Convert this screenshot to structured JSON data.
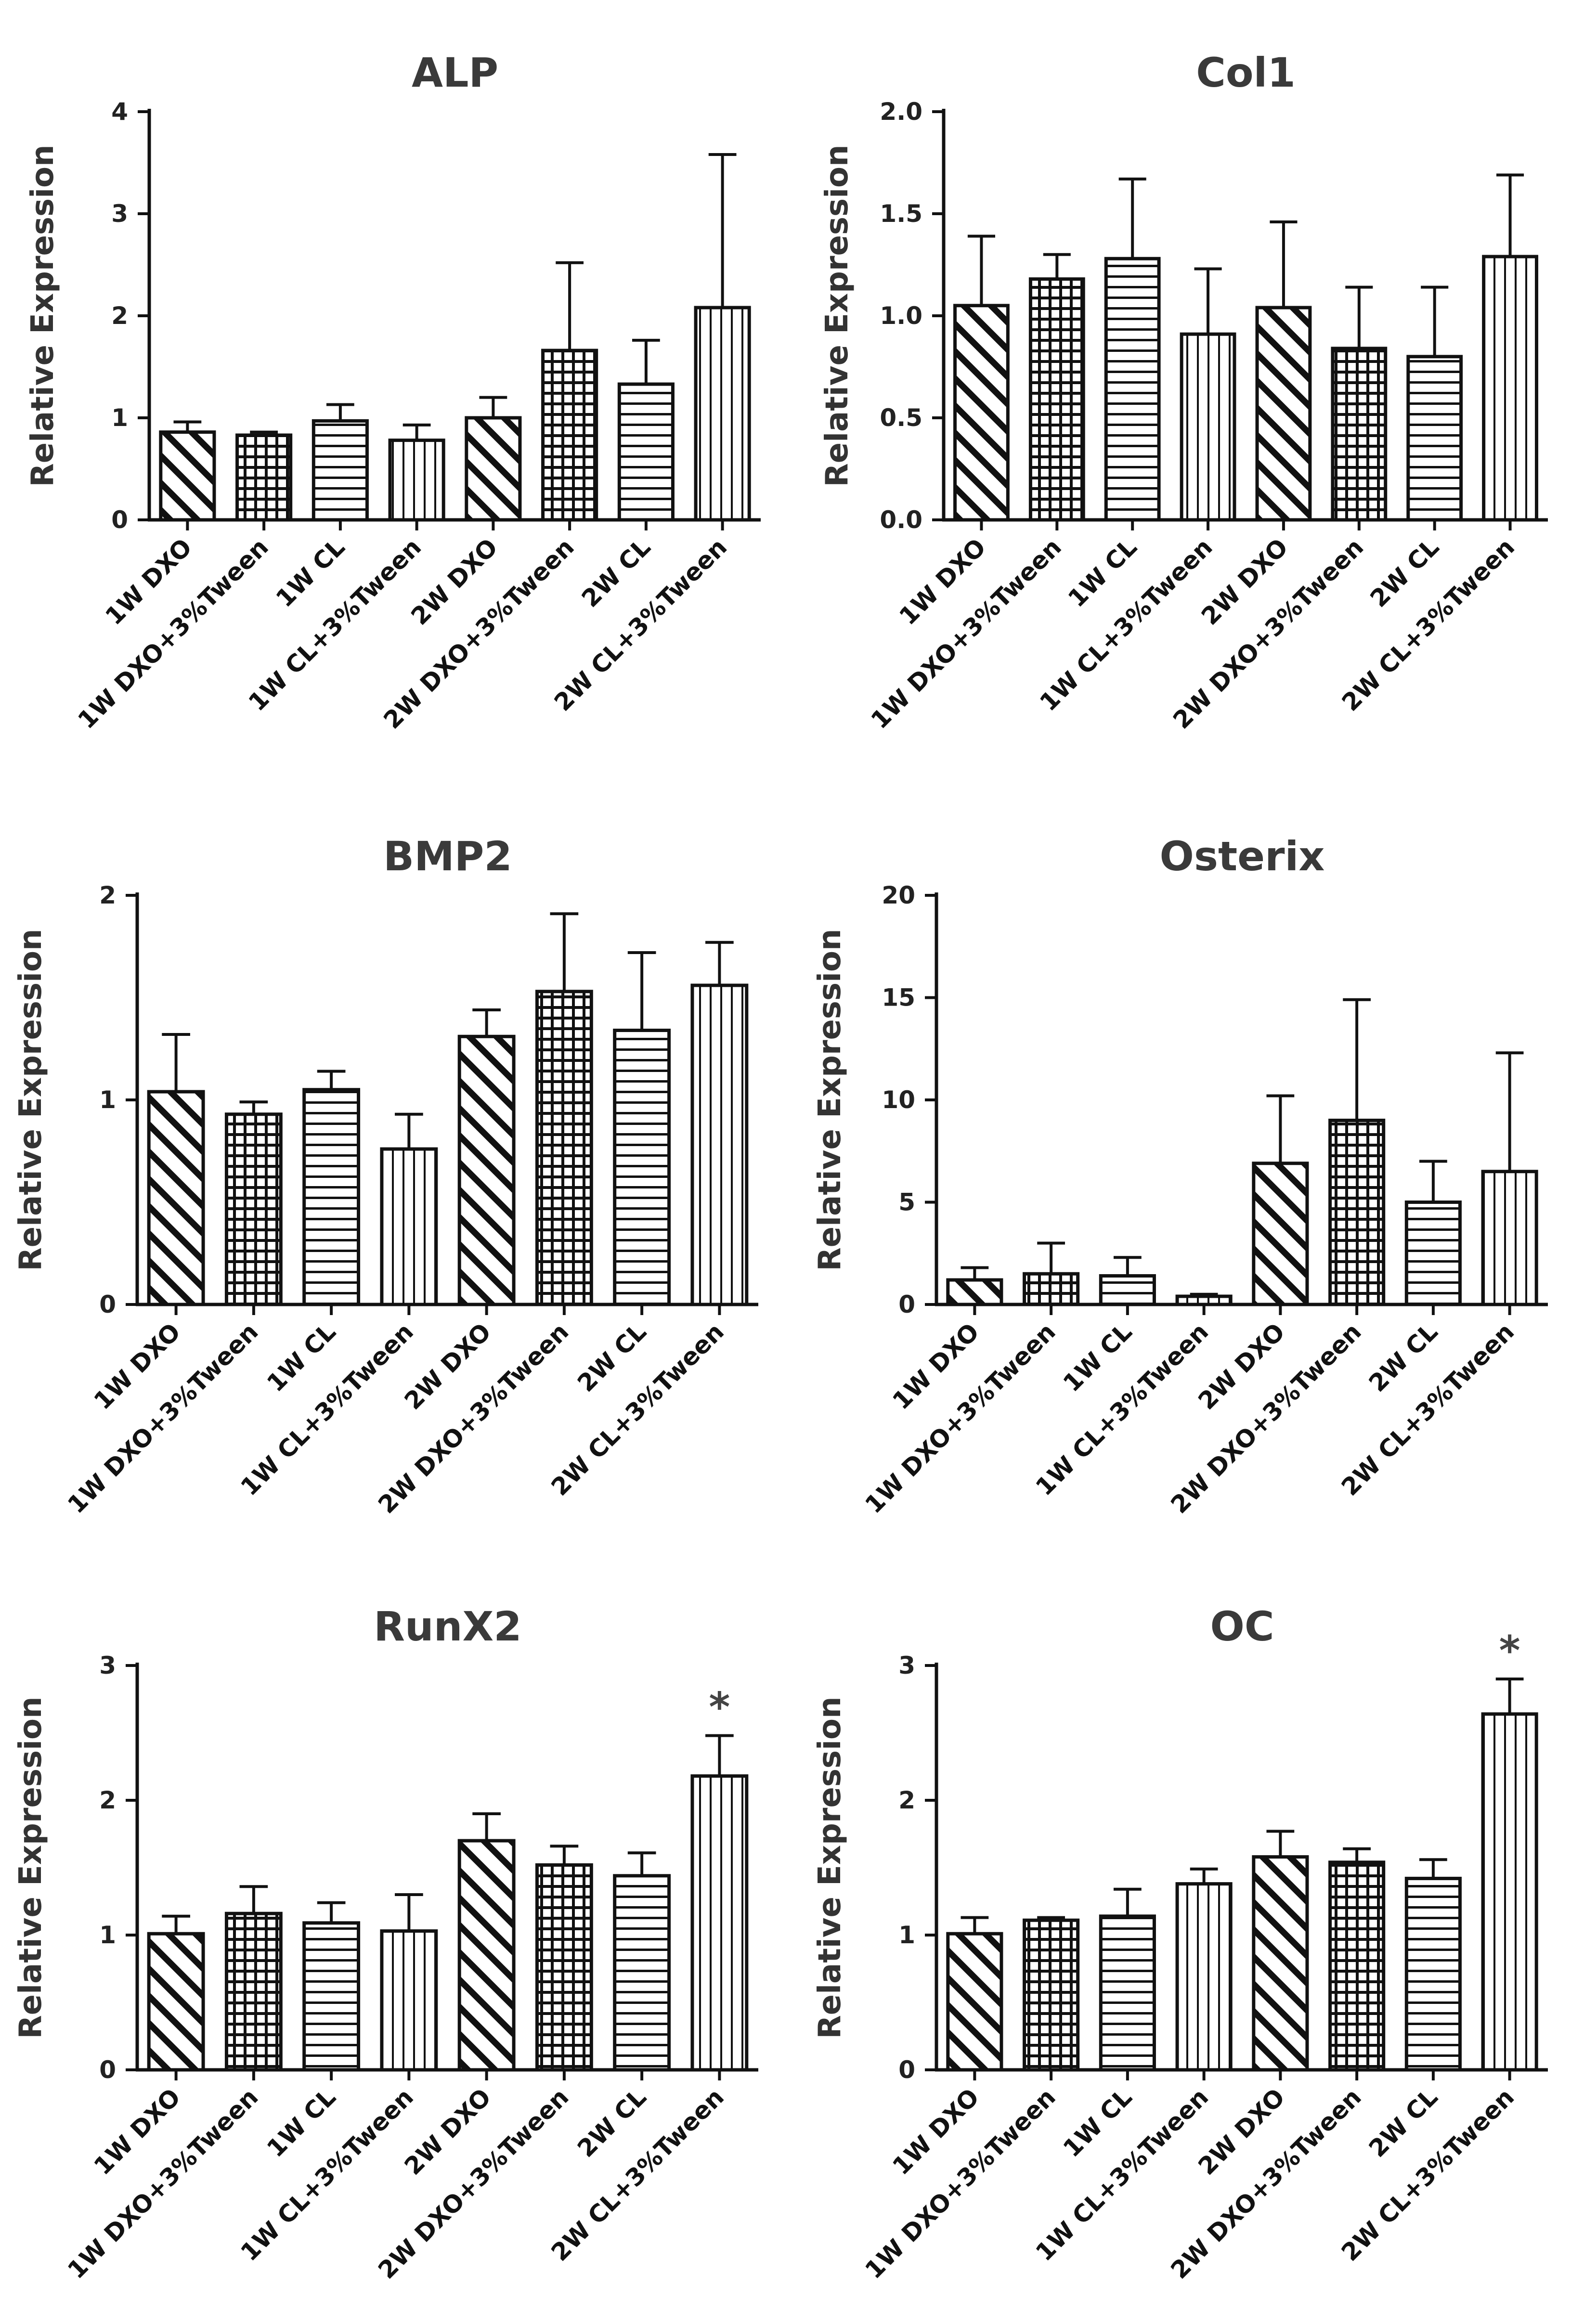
{
  "chart_data": [
    {
      "type": "bar",
      "title": "ALP",
      "ylabel": "Relative Expression",
      "xlabel": "",
      "ylim": [
        0,
        4
      ],
      "yticks": [
        0,
        1,
        2,
        3,
        4
      ],
      "categories": [
        "1W DXO",
        "1W DXO+3%Tween",
        "1W CL",
        "1W CL+3%Tween",
        "2W DXO",
        "2W DXO+3%Tween",
        "2W CL",
        "2W CL+3%Tween"
      ],
      "patterns": [
        "diagonal",
        "grid",
        "horizontal",
        "vertical",
        "diagonal",
        "grid",
        "horizontal",
        "vertical"
      ],
      "values": [
        0.86,
        0.83,
        0.97,
        0.78,
        1.0,
        1.66,
        1.33,
        2.08
      ],
      "errors": [
        0.1,
        0.03,
        0.16,
        0.15,
        0.2,
        0.86,
        0.43,
        1.5
      ],
      "significance": [
        "",
        "",
        "",
        "",
        "",
        "",
        "",
        ""
      ]
    },
    {
      "type": "bar",
      "title": "Col1",
      "ylabel": "Relative Expression",
      "xlabel": "",
      "ylim": [
        0,
        2.0
      ],
      "yticks": [
        0.0,
        0.5,
        1.0,
        1.5,
        2.0
      ],
      "tick_labels": [
        "0.0",
        "0.5",
        "1.0",
        "1.5",
        "2.0"
      ],
      "categories": [
        "1W DXO",
        "1W DXO+3%Tween",
        "1W CL",
        "1W CL+3%Tween",
        "2W DXO",
        "2W DXO+3%Tween",
        "2W CL",
        "2W CL+3%Tween"
      ],
      "patterns": [
        "diagonal",
        "grid",
        "horizontal",
        "vertical",
        "diagonal",
        "grid",
        "horizontal",
        "vertical"
      ],
      "values": [
        1.05,
        1.18,
        1.28,
        0.91,
        1.04,
        0.84,
        0.8,
        1.29
      ],
      "errors": [
        0.34,
        0.12,
        0.39,
        0.32,
        0.42,
        0.3,
        0.34,
        0.4
      ],
      "significance": [
        "",
        "",
        "",
        "",
        "",
        "",
        "",
        ""
      ]
    },
    {
      "type": "bar",
      "title": "BMP2",
      "ylabel": "Relative Expression",
      "xlabel": "",
      "ylim": [
        0,
        2
      ],
      "yticks": [
        0,
        1,
        2
      ],
      "categories": [
        "1W DXO",
        "1W DXO+3%Tween",
        "1W CL",
        "1W CL+3%Tween",
        "2W DXO",
        "2W DXO+3%Tween",
        "2W CL",
        "2W CL+3%Tween"
      ],
      "patterns": [
        "diagonal",
        "grid",
        "horizontal",
        "vertical",
        "diagonal",
        "grid",
        "horizontal",
        "vertical"
      ],
      "values": [
        1.04,
        0.93,
        1.05,
        0.76,
        1.31,
        1.53,
        1.34,
        1.56
      ],
      "errors": [
        0.28,
        0.06,
        0.09,
        0.17,
        0.13,
        0.38,
        0.38,
        0.21
      ],
      "significance": [
        "",
        "",
        "",
        "",
        "",
        "",
        "",
        ""
      ]
    },
    {
      "type": "bar",
      "title": "Osterix",
      "ylabel": "Relative Expression",
      "xlabel": "",
      "ylim": [
        0,
        20
      ],
      "yticks": [
        0,
        5,
        10,
        15,
        20
      ],
      "categories": [
        "1W DXO",
        "1W DXO+3%Tween",
        "1W CL",
        "1W CL+3%Tween",
        "2W DXO",
        "2W DXO+3%Tween",
        "2W CL",
        "2W CL+3%Tween"
      ],
      "patterns": [
        "diagonal",
        "grid",
        "horizontal",
        "vertical",
        "diagonal",
        "grid",
        "horizontal",
        "vertical"
      ],
      "values": [
        1.2,
        1.5,
        1.4,
        0.4,
        6.9,
        9.0,
        5.0,
        6.5
      ],
      "errors": [
        0.6,
        1.5,
        0.9,
        0.1,
        3.3,
        5.9,
        2.0,
        5.8
      ],
      "significance": [
        "",
        "",
        "",
        "",
        "",
        "",
        "",
        ""
      ]
    },
    {
      "type": "bar",
      "title": "RunX2",
      "ylabel": "Relative Expression",
      "xlabel": "",
      "ylim": [
        0,
        3
      ],
      "yticks": [
        0,
        1,
        2,
        3
      ],
      "categories": [
        "1W DXO",
        "1W DXO+3%Tween",
        "1W CL",
        "1W CL+3%Tween",
        "2W DXO",
        "2W DXO+3%Tween",
        "2W CL",
        "2W CL+3%Tween"
      ],
      "patterns": [
        "diagonal",
        "grid",
        "horizontal",
        "vertical",
        "diagonal",
        "grid",
        "horizontal",
        "vertical"
      ],
      "values": [
        1.01,
        1.16,
        1.09,
        1.03,
        1.7,
        1.52,
        1.44,
        2.18
      ],
      "errors": [
        0.13,
        0.2,
        0.15,
        0.27,
        0.2,
        0.14,
        0.17,
        0.3
      ],
      "significance": [
        "",
        "",
        "",
        "",
        "",
        "",
        "",
        "*"
      ]
    },
    {
      "type": "bar",
      "title": "OC",
      "ylabel": "Relative Expression",
      "xlabel": "",
      "ylim": [
        0,
        3
      ],
      "yticks": [
        0,
        1,
        2,
        3
      ],
      "categories": [
        "1W DXO",
        "1W DXO+3%Tween",
        "1W CL",
        "1W CL+3%Tween",
        "2W DXO",
        "2W DXO+3%Tween",
        "2W CL",
        "2W CL+3%Tween"
      ],
      "patterns": [
        "diagonal",
        "grid",
        "horizontal",
        "vertical",
        "diagonal",
        "grid",
        "horizontal",
        "vertical"
      ],
      "values": [
        1.01,
        1.11,
        1.14,
        1.38,
        1.58,
        1.54,
        1.42,
        2.64
      ],
      "errors": [
        0.12,
        0.02,
        0.2,
        0.11,
        0.19,
        0.1,
        0.14,
        0.26
      ],
      "significance": [
        "",
        "",
        "",
        "",
        "",
        "",
        "",
        "*"
      ]
    }
  ]
}
